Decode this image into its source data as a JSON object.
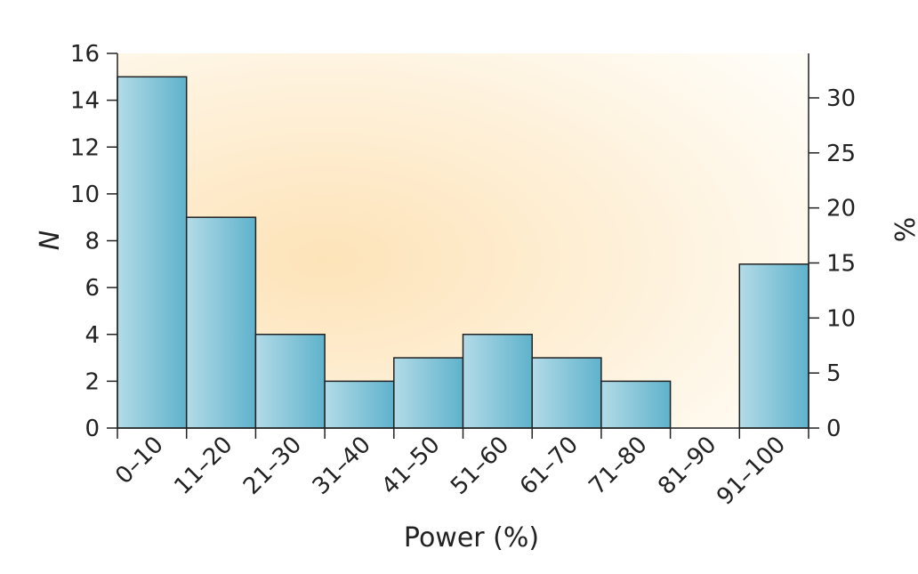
{
  "chart_data": {
    "type": "bar",
    "categories": [
      "0–10",
      "11–20",
      "21–30",
      "31–40",
      "41–50",
      "51–60",
      "61–70",
      "71–80",
      "81–90",
      "91–100"
    ],
    "values": [
      15,
      9,
      4,
      2,
      3,
      4,
      3,
      2,
      0,
      7
    ],
    "xlabel": "Power (%)",
    "ylabel": "N",
    "y2label": "%",
    "ylim": [
      0,
      16
    ],
    "yticks": [
      0,
      2,
      4,
      6,
      8,
      10,
      12,
      14,
      16
    ],
    "y2lim": [
      0,
      34.04
    ],
    "y2ticks": [
      0,
      5,
      10,
      15,
      20,
      25,
      30
    ],
    "grid": false,
    "colors": {
      "bar_light": "#b3dbe7",
      "bar_dark": "#5fb2cc",
      "background_warm": "#fde3b8",
      "background_light": "#fffdf8"
    }
  }
}
